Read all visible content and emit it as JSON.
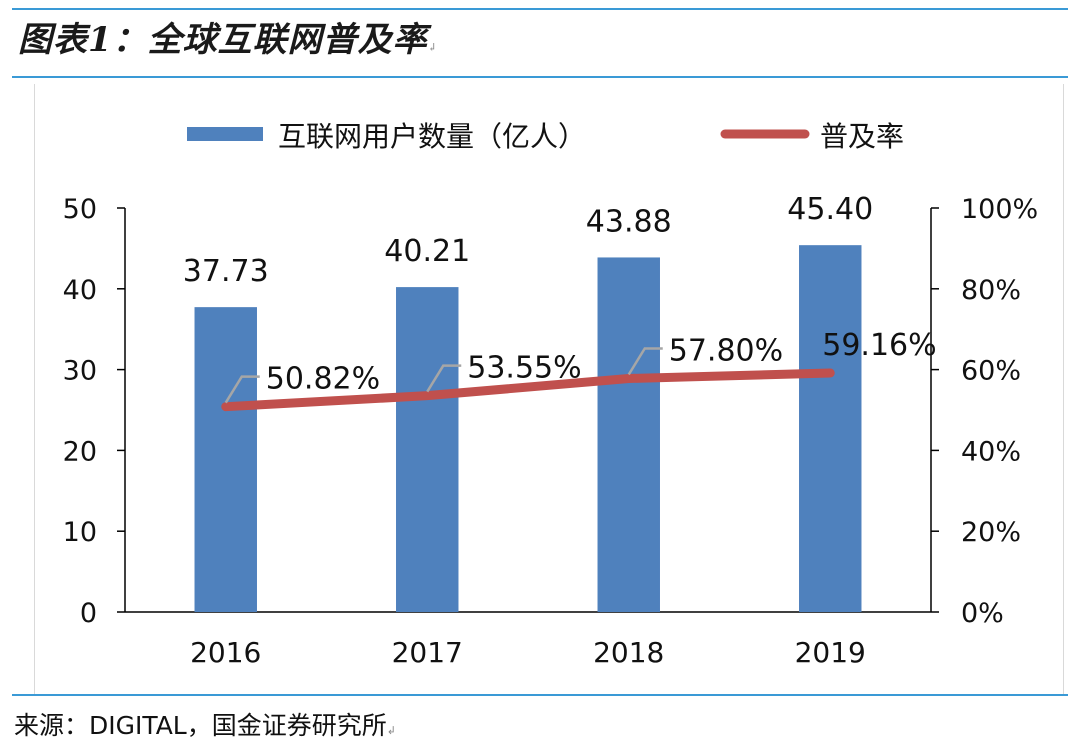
{
  "figure": {
    "title": "图表1：全球互联网普及率",
    "source": "来源：DIGITAL，国金证券研究所"
  },
  "chart_data": {
    "type": "bar",
    "categories": [
      "2016",
      "2017",
      "2018",
      "2019"
    ],
    "series": [
      {
        "name": "互联网用户数量（亿人）",
        "type": "bar",
        "axis": "left",
        "color": "#4f81bd",
        "values": [
          37.73,
          40.21,
          43.88,
          45.4
        ],
        "labels": [
          "37.73",
          "40.21",
          "43.88",
          "45.40"
        ]
      },
      {
        "name": "普及率",
        "type": "line",
        "axis": "right",
        "color": "#c0504d",
        "values": [
          50.82,
          53.55,
          57.8,
          59.16
        ],
        "labels": [
          "50.82%",
          "53.55%",
          "57.80%",
          "59.16%"
        ]
      }
    ],
    "y_left": {
      "min": 0,
      "max": 50,
      "ticks": [
        0,
        10,
        20,
        30,
        40,
        50
      ]
    },
    "y_right": {
      "min": 0,
      "max": 100,
      "ticks": [
        "0%",
        "20%",
        "40%",
        "60%",
        "80%",
        "100%"
      ]
    },
    "legend_position": "top",
    "grid": false
  }
}
